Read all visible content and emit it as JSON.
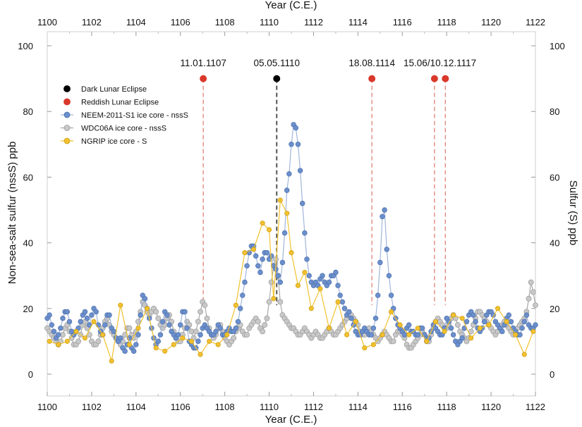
{
  "chart_data": {
    "type": "scatter",
    "xlabel_top": "Year (C.E.)",
    "xlabel_bottom": "Year (C.E.)",
    "ylabel_left": "Non-sea-salt sulfur (nssS) ppb",
    "ylabel_right": "Sulfur (S) ppb",
    "xlim": [
      1100,
      1122
    ],
    "ylim": [
      0,
      100
    ],
    "xticks": [
      "1100",
      "1102",
      "1104",
      "1106",
      "1108",
      "1110",
      "1112",
      "1114",
      "1116",
      "1118",
      "1120",
      "1122"
    ],
    "yticks": [
      "0",
      "20",
      "40",
      "60",
      "80",
      "100"
    ],
    "grid": false,
    "legend_position": "upper-left",
    "colors": {
      "dark_eclipse": "#000000",
      "reddish_eclipse": "#d9382a",
      "neem": "#6b8fcb",
      "neem_line": "#9fb6db",
      "wdc": "#c8c8c8",
      "wdc_edge": "#9a9a9a",
      "wdc_line": "#a8a8a8",
      "ngrip": "#f2c12e",
      "ngrip_edge": "#c99a12"
    },
    "eclipses": [
      {
        "label": "11.01.1107",
        "x": 1107.03,
        "type": "reddish"
      },
      {
        "label": "05.05.1110",
        "x": 1110.34,
        "type": "dark"
      },
      {
        "label": "18.08.1114",
        "x": 1114.63,
        "type": "reddish"
      },
      {
        "label": "15.06/10.12.1117",
        "x": 1117.45,
        "type": "reddish",
        "x2": 1117.94
      }
    ],
    "eclipse_marker_y": 90,
    "series": [
      {
        "name": "NEEM-2011-S1 ice core - nssS",
        "color_key": "neem",
        "x": [
          1100.0,
          1100.1,
          1100.2,
          1100.3,
          1100.4,
          1100.5,
          1100.6,
          1100.7,
          1100.8,
          1100.9,
          1101.0,
          1101.1,
          1101.2,
          1101.3,
          1101.4,
          1101.5,
          1101.6,
          1101.7,
          1101.8,
          1101.9,
          1102.0,
          1102.1,
          1102.2,
          1102.3,
          1102.4,
          1102.5,
          1102.6,
          1102.7,
          1102.8,
          1102.9,
          1103.0,
          1103.1,
          1103.2,
          1103.3,
          1103.4,
          1103.5,
          1103.6,
          1103.7,
          1103.8,
          1103.9,
          1104.0,
          1104.1,
          1104.2,
          1104.3,
          1104.4,
          1104.5,
          1104.6,
          1104.7,
          1104.8,
          1104.9,
          1105.0,
          1105.1,
          1105.2,
          1105.3,
          1105.4,
          1105.5,
          1105.6,
          1105.7,
          1105.8,
          1105.9,
          1106.0,
          1106.1,
          1106.2,
          1106.3,
          1106.4,
          1106.5,
          1106.6,
          1106.7,
          1106.8,
          1106.9,
          1107.0,
          1107.1,
          1107.2,
          1107.3,
          1107.4,
          1107.5,
          1107.6,
          1107.7,
          1107.8,
          1107.9,
          1108.0,
          1108.1,
          1108.2,
          1108.3,
          1108.4,
          1108.5,
          1108.6,
          1108.7,
          1108.8,
          1108.9,
          1109.0,
          1109.1,
          1109.2,
          1109.3,
          1109.4,
          1109.5,
          1109.6,
          1109.7,
          1109.8,
          1109.9,
          1110.0,
          1110.1,
          1110.2,
          1110.3,
          1110.4,
          1110.5,
          1110.6,
          1110.7,
          1110.8,
          1110.9,
          1111.0,
          1111.1,
          1111.2,
          1111.3,
          1111.4,
          1111.5,
          1111.6,
          1111.7,
          1111.8,
          1111.9,
          1112.0,
          1112.1,
          1112.2,
          1112.3,
          1112.4,
          1112.5,
          1112.6,
          1112.7,
          1112.8,
          1112.9,
          1113.0,
          1113.1,
          1113.2,
          1113.3,
          1113.4,
          1113.5,
          1113.6,
          1113.7,
          1113.8,
          1113.9,
          1114.0,
          1114.1,
          1114.2,
          1114.3,
          1114.4,
          1114.5,
          1114.6,
          1114.7,
          1114.8,
          1114.9,
          1115.0,
          1115.1,
          1115.2,
          1115.3,
          1115.4,
          1115.5,
          1115.6,
          1115.7,
          1115.8,
          1115.9,
          1116.0,
          1116.1,
          1116.2,
          1116.3,
          1116.4,
          1116.5,
          1116.6,
          1116.7,
          1116.8,
          1116.9,
          1117.0,
          1117.1,
          1117.2,
          1117.3,
          1117.4,
          1117.5,
          1117.6,
          1117.7,
          1117.8,
          1117.9,
          1118.0,
          1118.1,
          1118.2,
          1118.3,
          1118.4,
          1118.5,
          1118.6,
          1118.7,
          1118.8,
          1118.9,
          1119.0,
          1119.1,
          1119.2,
          1119.3,
          1119.4,
          1119.5,
          1119.6,
          1119.7,
          1119.8,
          1119.9,
          1120.0,
          1120.1,
          1120.2,
          1120.3,
          1120.4,
          1120.5,
          1120.6,
          1120.7,
          1120.8,
          1120.9,
          1121.0,
          1121.1,
          1121.2,
          1121.3,
          1121.4,
          1121.5,
          1121.6,
          1121.7,
          1121.8,
          1121.9,
          1122.0
        ],
        "y": [
          17,
          18,
          15,
          13,
          11,
          12,
          14,
          17,
          19,
          19,
          16,
          13,
          12,
          13,
          14,
          16,
          18,
          19,
          17,
          15,
          18,
          20,
          19,
          15,
          13,
          12,
          15,
          18,
          18,
          14,
          13,
          11,
          10,
          11,
          8,
          7,
          9,
          11,
          8,
          7,
          9,
          12,
          18,
          24,
          23,
          20,
          17,
          14,
          11,
          9,
          10,
          12,
          16,
          19,
          18,
          15,
          13,
          12,
          11,
          12,
          15,
          19,
          19,
          14,
          10,
          9,
          8,
          8,
          10,
          12,
          14,
          15,
          14,
          13,
          12,
          12,
          13,
          15,
          14,
          12,
          12,
          13,
          14,
          13,
          13,
          14,
          16,
          20,
          24,
          28,
          33,
          37,
          39,
          39,
          36,
          33,
          31,
          35,
          37,
          37,
          35,
          36,
          33,
          32,
          30,
          28,
          34,
          43,
          56,
          61,
          70,
          76,
          75,
          70,
          62,
          52,
          43,
          35,
          30,
          28,
          27,
          28,
          27,
          29,
          30,
          28,
          27,
          28,
          30,
          30,
          31,
          27,
          24,
          22,
          20,
          18,
          19,
          17,
          15,
          13,
          12,
          12,
          13,
          14,
          13,
          12,
          12,
          14,
          17,
          24,
          34,
          48,
          50,
          38,
          30,
          24,
          20,
          17,
          15,
          14,
          13,
          12,
          14,
          15,
          13,
          13,
          12,
          12,
          14,
          14,
          12,
          11,
          11,
          13,
          15,
          14,
          13,
          12,
          12,
          14,
          17,
          16,
          14,
          12,
          10,
          9,
          10,
          11,
          14,
          16,
          18,
          19,
          18,
          16,
          14,
          13,
          14,
          16,
          18,
          19,
          19,
          18,
          16,
          15,
          14,
          13,
          15,
          17,
          18,
          16,
          14,
          13,
          12,
          12,
          14,
          16,
          18,
          15,
          14,
          14,
          15
        ],
        "line": true
      },
      {
        "name": "WDC06A ice core - nssS",
        "color_key": "wdc",
        "x": [
          1100.0,
          1100.1,
          1100.2,
          1100.3,
          1100.4,
          1100.5,
          1100.6,
          1100.7,
          1100.8,
          1100.9,
          1101.0,
          1101.1,
          1101.2,
          1101.3,
          1101.4,
          1101.5,
          1101.6,
          1101.7,
          1101.8,
          1101.9,
          1102.0,
          1102.1,
          1102.2,
          1102.3,
          1102.4,
          1102.5,
          1102.6,
          1102.7,
          1102.8,
          1102.9,
          1103.0,
          1103.1,
          1103.2,
          1103.3,
          1103.4,
          1103.5,
          1103.6,
          1103.7,
          1103.8,
          1103.9,
          1104.0,
          1104.1,
          1104.2,
          1104.3,
          1104.4,
          1104.5,
          1104.6,
          1104.7,
          1104.8,
          1104.9,
          1105.0,
          1105.1,
          1105.2,
          1105.3,
          1105.4,
          1105.5,
          1105.6,
          1105.7,
          1105.8,
          1105.9,
          1106.0,
          1106.1,
          1106.2,
          1106.3,
          1106.4,
          1106.5,
          1106.6,
          1106.7,
          1106.8,
          1106.9,
          1107.0,
          1107.1,
          1107.2,
          1107.3,
          1107.4,
          1107.5,
          1107.6,
          1107.7,
          1107.8,
          1107.9,
          1108.0,
          1108.1,
          1108.2,
          1108.3,
          1108.4,
          1108.5,
          1108.6,
          1108.7,
          1108.8,
          1108.9,
          1109.0,
          1109.1,
          1109.2,
          1109.3,
          1109.4,
          1109.5,
          1109.6,
          1109.7,
          1109.8,
          1109.9,
          1110.0,
          1110.1,
          1110.2,
          1110.3,
          1110.4,
          1110.5,
          1110.6,
          1110.7,
          1110.8,
          1110.9,
          1111.0,
          1111.1,
          1111.2,
          1111.3,
          1111.4,
          1111.5,
          1111.6,
          1111.7,
          1111.8,
          1111.9,
          1112.0,
          1112.1,
          1112.2,
          1112.3,
          1112.4,
          1112.5,
          1112.6,
          1112.7,
          1112.8,
          1112.9,
          1113.0,
          1113.1,
          1113.2,
          1113.3,
          1113.4,
          1113.5,
          1113.6,
          1113.7,
          1113.8,
          1113.9,
          1114.0,
          1114.1,
          1114.2,
          1114.3,
          1114.4,
          1114.5,
          1114.6,
          1114.7,
          1114.8,
          1114.9,
          1115.0,
          1115.1,
          1115.2,
          1115.3,
          1115.4,
          1115.5,
          1115.6,
          1115.7,
          1115.8,
          1115.9,
          1116.0,
          1116.1,
          1116.2,
          1116.3,
          1116.4,
          1116.5,
          1116.6,
          1116.7,
          1116.8,
          1116.9,
          1117.0,
          1117.1,
          1117.2,
          1117.3,
          1117.4,
          1117.5,
          1117.6,
          1117.7,
          1117.8,
          1117.9,
          1118.0,
          1118.1,
          1118.2,
          1118.3,
          1118.4,
          1118.5,
          1118.6,
          1118.7,
          1118.8,
          1118.9,
          1119.0,
          1119.1,
          1119.2,
          1119.3,
          1119.4,
          1119.5,
          1119.6,
          1119.7,
          1119.8,
          1119.9,
          1120.0,
          1120.1,
          1120.2,
          1120.3,
          1120.4,
          1120.5,
          1120.6,
          1120.7,
          1120.8,
          1120.9,
          1121.0,
          1121.1,
          1121.2,
          1121.3,
          1121.4,
          1121.5,
          1121.6,
          1121.7,
          1121.8,
          1121.9,
          1122.0
        ],
        "y": [
          14,
          13,
          12,
          11,
          10,
          9,
          10,
          12,
          14,
          15,
          13,
          11,
          9,
          9,
          10,
          12,
          15,
          16,
          14,
          12,
          10,
          9,
          9,
          10,
          12,
          14,
          16,
          17,
          15,
          13,
          12,
          11,
          10,
          9,
          10,
          12,
          14,
          14,
          12,
          11,
          13,
          16,
          19,
          22,
          21,
          19,
          18,
          19,
          20,
          19,
          17,
          15,
          14,
          15,
          17,
          18,
          16,
          13,
          11,
          10,
          10,
          12,
          14,
          16,
          15,
          13,
          11,
          13,
          16,
          19,
          22,
          21,
          17,
          14,
          12,
          11,
          12,
          14,
          15,
          13,
          11,
          10,
          9,
          10,
          11,
          13,
          14,
          15,
          13,
          12,
          12,
          14,
          15,
          16,
          17,
          16,
          14,
          13,
          15,
          17,
          22,
          28,
          33,
          35,
          30,
          22,
          18,
          17,
          16,
          15,
          14,
          14,
          13,
          12,
          12,
          13,
          14,
          13,
          12,
          11,
          12,
          13,
          12,
          11,
          11,
          12,
          13,
          14,
          13,
          12,
          12,
          13,
          14,
          15,
          16,
          17,
          18,
          18,
          17,
          16,
          15,
          13,
          12,
          12,
          13,
          14,
          13,
          12,
          11,
          10,
          11,
          12,
          13,
          12,
          11,
          10,
          10,
          12,
          13,
          13,
          12,
          11,
          9,
          8,
          8,
          9,
          10,
          11,
          12,
          13,
          12,
          10,
          10,
          12,
          14,
          16,
          17,
          16,
          15,
          14,
          14,
          15,
          17,
          18,
          17,
          15,
          13,
          12,
          11,
          10,
          11,
          13,
          15,
          17,
          19,
          19,
          18,
          17,
          16,
          15,
          14,
          13,
          12,
          13,
          14,
          15,
          16,
          15,
          14,
          13,
          12,
          13,
          14,
          15,
          16,
          17,
          19,
          23,
          28,
          25,
          21
        ],
        "line": true
      },
      {
        "name": "NGRIP ice core - S",
        "color_key": "ngrip",
        "x": [
          1100.1,
          1100.5,
          1100.9,
          1101.3,
          1101.7,
          1102.1,
          1102.5,
          1102.9,
          1103.3,
          1103.7,
          1104.1,
          1104.5,
          1104.9,
          1105.3,
          1105.7,
          1106.1,
          1106.5,
          1106.9,
          1107.3,
          1107.7,
          1108.1,
          1108.5,
          1108.9,
          1109.3,
          1109.7,
          1110.0,
          1110.2,
          1110.5,
          1110.8,
          1111.0,
          1111.3,
          1111.6,
          1111.9,
          1112.3,
          1112.7,
          1113.1,
          1113.5,
          1113.9,
          1114.3,
          1114.7,
          1115.1,
          1115.5,
          1115.9,
          1116.3,
          1116.7,
          1117.1,
          1117.5,
          1117.9,
          1118.3,
          1118.7,
          1119.1,
          1119.5,
          1119.9,
          1120.3,
          1120.7,
          1121.1,
          1121.5,
          1121.9
        ],
        "y": [
          10,
          9,
          10,
          13,
          11,
          16,
          12,
          4,
          21,
          9,
          14,
          20,
          8,
          7,
          9,
          11,
          10,
          6,
          10,
          9,
          12,
          21,
          37,
          38,
          46,
          44,
          23,
          53,
          49,
          37,
          27,
          31,
          20,
          26,
          14,
          22,
          12,
          16,
          8,
          9,
          12,
          19,
          15,
          12,
          14,
          10,
          16,
          13,
          18,
          17,
          11,
          14,
          15,
          20,
          16,
          12,
          6,
          13
        ],
        "line": true
      }
    ],
    "legend": [
      {
        "label": "Dark Lunar Eclipse",
        "color_key": "dark_eclipse",
        "line": false
      },
      {
        "label": "Reddish Lunar Eclipse",
        "color_key": "reddish_eclipse",
        "line": false
      },
      {
        "label": "NEEM-2011-S1 ice core - nssS",
        "color_key": "neem",
        "line": true
      },
      {
        "label": "WDC06A ice core - nssS",
        "color_key": "wdc",
        "line": true
      },
      {
        "label": "NGRIP ice core - S",
        "color_key": "ngrip",
        "line": true
      }
    ]
  }
}
